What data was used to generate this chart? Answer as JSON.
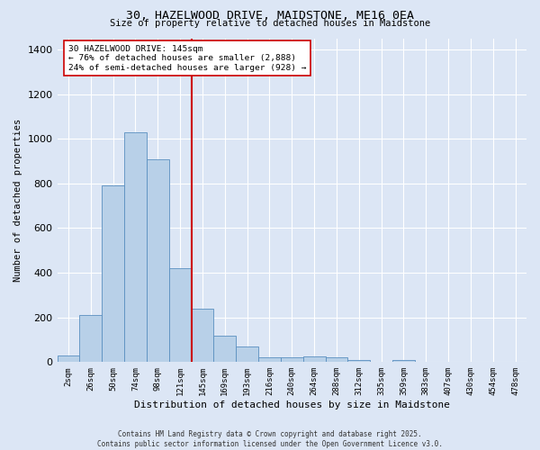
{
  "title": "30, HAZELWOOD DRIVE, MAIDSTONE, ME16 0EA",
  "subtitle": "Size of property relative to detached houses in Maidstone",
  "xlabel": "Distribution of detached houses by size in Maidstone",
  "ylabel": "Number of detached properties",
  "categories": [
    "2sqm",
    "26sqm",
    "50sqm",
    "74sqm",
    "98sqm",
    "121sqm",
    "145sqm",
    "169sqm",
    "193sqm",
    "216sqm",
    "240sqm",
    "264sqm",
    "288sqm",
    "312sqm",
    "335sqm",
    "359sqm",
    "383sqm",
    "407sqm",
    "430sqm",
    "454sqm",
    "478sqm"
  ],
  "values": [
    30,
    210,
    790,
    1030,
    910,
    420,
    240,
    120,
    70,
    20,
    20,
    25,
    20,
    10,
    0,
    10,
    0,
    0,
    0,
    0,
    0
  ],
  "bar_color": "#b8d0e8",
  "bar_edge_color": "#5a8fc0",
  "background_color": "#dce6f5",
  "grid_color": "#ffffff",
  "vline_x": 5.5,
  "vline_color": "#cc0000",
  "annotation_text": "30 HAZELWOOD DRIVE: 145sqm\n← 76% of detached houses are smaller (2,888)\n24% of semi-detached houses are larger (928) →",
  "annotation_box_color": "#ffffff",
  "annotation_box_edge": "#cc0000",
  "ylim": [
    0,
    1450
  ],
  "yticks": [
    0,
    200,
    400,
    600,
    800,
    1000,
    1200,
    1400
  ],
  "footer": "Contains HM Land Registry data © Crown copyright and database right 2025.\nContains public sector information licensed under the Open Government Licence v3.0."
}
